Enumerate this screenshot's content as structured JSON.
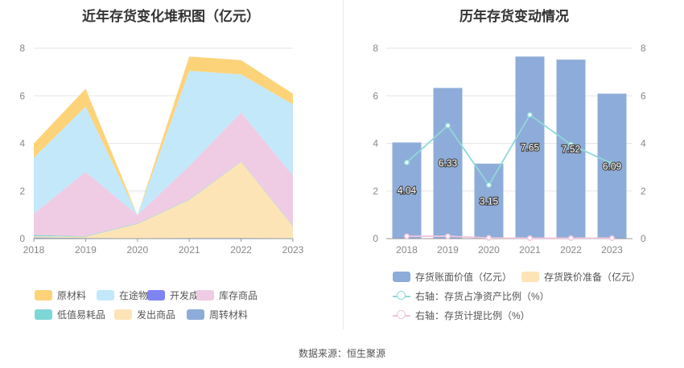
{
  "source_text": "数据来源：恒生聚源",
  "chart_data": [
    {
      "type": "area",
      "stacked": true,
      "title": "近年存货变化堆积图（亿元）",
      "x": [
        "2018",
        "2019",
        "2020",
        "2021",
        "2022",
        "2023"
      ],
      "ylim": [
        0,
        8
      ],
      "yticks": [
        "0",
        "2",
        "4",
        "6",
        "8"
      ],
      "grid": true,
      "legend_position": "bottom",
      "series": [
        {
          "name": "周转材料",
          "color": "#8eacd9",
          "values": [
            0.05,
            0.03,
            0.02,
            0.03,
            0.03,
            0.02
          ]
        },
        {
          "name": "发出商品",
          "color": "#fde4b6",
          "values": [
            0.05,
            0.05,
            0.6,
            1.6,
            3.2,
            0.5
          ]
        },
        {
          "name": "低值易耗品",
          "color": "#7fd6d6",
          "values": [
            0.05,
            0.02,
            0.02,
            0.02,
            0.02,
            0.02
          ]
        },
        {
          "name": "库存商品",
          "color": "#f0cbe4",
          "values": [
            0.9,
            2.7,
            0.35,
            1.4,
            2.05,
            2.1
          ]
        },
        {
          "name": "开发成本",
          "color": "#7f84f3",
          "values": [
            0,
            0,
            0,
            0,
            0,
            0
          ]
        },
        {
          "name": "在途物资",
          "color": "#c3e8fa",
          "values": [
            2.35,
            2.75,
            0.0,
            4.0,
            1.6,
            3.0
          ]
        },
        {
          "name": "原材料",
          "color": "#fdd37a",
          "values": [
            0.6,
            0.75,
            0.0,
            0.6,
            0.6,
            0.45
          ]
        }
      ],
      "legend_order": [
        "原材料",
        "在途物资",
        "开发成本",
        "库存商品",
        "低值易耗品",
        "发出商品",
        "周转材料"
      ]
    },
    {
      "type": "bar",
      "title": "历年存货变动情况",
      "categories": [
        "2018",
        "2019",
        "2020",
        "2021",
        "2022",
        "2023"
      ],
      "ylim": [
        0,
        8
      ],
      "yticks": [
        "0",
        "2",
        "4",
        "6",
        "8"
      ],
      "y2lim": [
        0,
        8
      ],
      "y2ticks": [
        "0",
        "2",
        "4",
        "6",
        "8"
      ],
      "grid": true,
      "legend_position": "bottom",
      "series": [
        {
          "name": "存货账面价值（亿元）",
          "type": "bar",
          "color": "#8eacd9",
          "values": [
            4.04,
            6.33,
            3.15,
            7.65,
            7.52,
            6.09
          ],
          "labels": [
            "4.04",
            "6.33",
            "3.15",
            "7.65",
            "7.52",
            "6.09"
          ]
        },
        {
          "name": "存货跌价准备（亿元）",
          "type": "bar",
          "color": "#fde4b6",
          "values": [
            0,
            0,
            0,
            0,
            0,
            0
          ]
        },
        {
          "name": "右轴：存货占净资产比例（%）",
          "type": "line",
          "axis": "right",
          "color": "#8fd8d8",
          "values": [
            3.2,
            4.75,
            2.25,
            5.2,
            3.95,
            3.15
          ]
        },
        {
          "name": "右轴：存货计提比例（%）",
          "type": "line",
          "axis": "right",
          "color": "#f0c4dc",
          "values": [
            0.1,
            0.1,
            0.03,
            0.02,
            0.02,
            0.02
          ]
        }
      ]
    }
  ]
}
